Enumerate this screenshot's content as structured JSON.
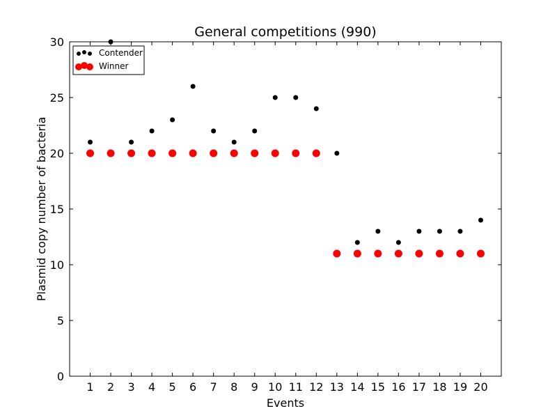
{
  "chart_data": {
    "type": "scatter",
    "title": "General competitions (990)",
    "xlabel": "Events",
    "ylabel": "Plasmid copy number of bacteria",
    "xlim": [
      0,
      21
    ],
    "ylim": [
      0,
      30
    ],
    "x_ticks": [
      1,
      2,
      3,
      4,
      5,
      6,
      7,
      8,
      9,
      10,
      11,
      12,
      13,
      14,
      15,
      16,
      17,
      18,
      19,
      20
    ],
    "y_ticks": [
      0,
      5,
      10,
      15,
      20,
      25,
      30
    ],
    "grid": false,
    "legend_position": "top-left",
    "series": [
      {
        "name": "Contender",
        "color": "#000000",
        "marker": "small-dot",
        "points": [
          [
            1,
            21
          ],
          [
            2,
            30
          ],
          [
            3,
            21
          ],
          [
            4,
            22
          ],
          [
            5,
            23
          ],
          [
            6,
            26
          ],
          [
            7,
            22
          ],
          [
            8,
            21
          ],
          [
            9,
            22
          ],
          [
            10,
            25
          ],
          [
            11,
            25
          ],
          [
            12,
            24
          ],
          [
            13,
            20
          ],
          [
            14,
            12
          ],
          [
            15,
            13
          ],
          [
            16,
            12
          ],
          [
            17,
            13
          ],
          [
            18,
            13
          ],
          [
            19,
            13
          ],
          [
            20,
            14
          ]
        ]
      },
      {
        "name": "Winner",
        "color": "#ff0000",
        "marker": "large-dot",
        "points": [
          [
            1,
            20
          ],
          [
            2,
            20
          ],
          [
            3,
            20
          ],
          [
            4,
            20
          ],
          [
            5,
            20
          ],
          [
            6,
            20
          ],
          [
            7,
            20
          ],
          [
            8,
            20
          ],
          [
            9,
            20
          ],
          [
            10,
            20
          ],
          [
            11,
            20
          ],
          [
            12,
            20
          ],
          [
            13,
            11
          ],
          [
            14,
            11
          ],
          [
            15,
            11
          ],
          [
            16,
            11
          ],
          [
            17,
            11
          ],
          [
            18,
            11
          ],
          [
            19,
            11
          ],
          [
            20,
            11
          ]
        ]
      }
    ]
  }
}
